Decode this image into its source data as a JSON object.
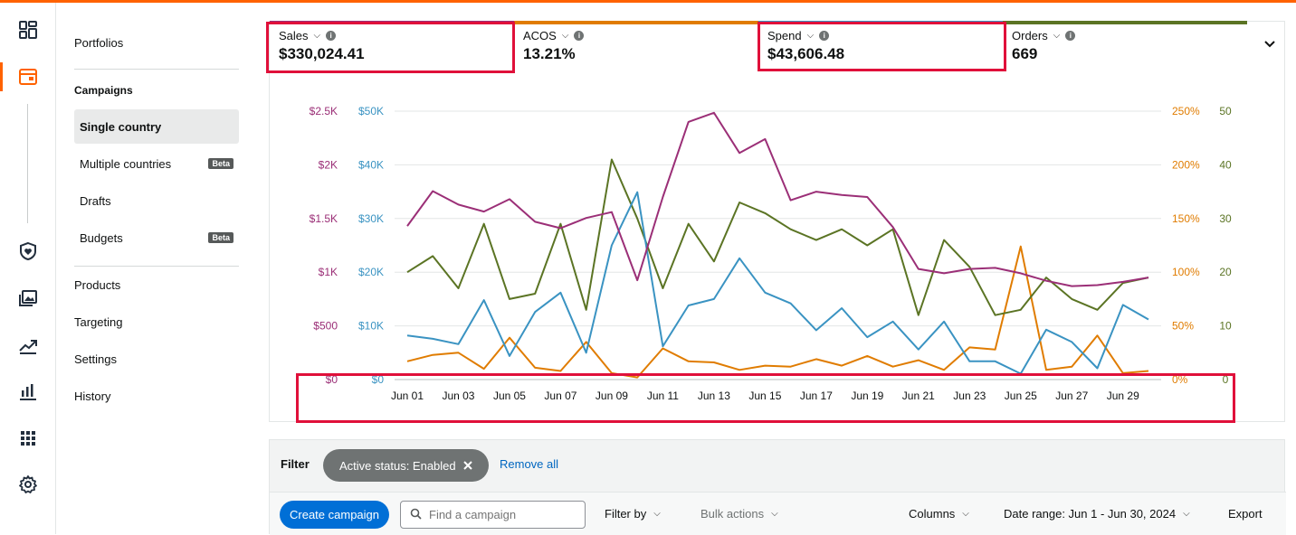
{
  "rail": {
    "icons": [
      "dashboard-icon",
      "campaign-manager-icon",
      "shield-heart-icon",
      "creative-media-icon",
      "trend-icon",
      "bar-report-icon",
      "apps-grid-icon",
      "settings-gear-icon"
    ]
  },
  "subnav": {
    "portfolios": "Portfolios",
    "campaigns_heading": "Campaigns",
    "items": [
      {
        "label": "Single country"
      },
      {
        "label": "Multiple countries",
        "badge": "Beta"
      },
      {
        "label": "Drafts"
      },
      {
        "label": "Budgets",
        "badge": "Beta"
      }
    ],
    "bottom": [
      "Products",
      "Targeting",
      "Settings",
      "History"
    ]
  },
  "metrics": [
    {
      "label": "Sales",
      "value": "$330,024.41",
      "color": "#9b2f77"
    },
    {
      "label": "ACOS",
      "value": "13.21%",
      "color": "#e07c00"
    },
    {
      "label": "Spend",
      "value": "$43,606.48",
      "color": "#3a93c2"
    },
    {
      "label": "Orders",
      "value": "669",
      "color": "#5b7424"
    }
  ],
  "chart_data": {
    "type": "line",
    "x": [
      "Jun 01",
      "Jun 02",
      "Jun 03",
      "Jun 04",
      "Jun 05",
      "Jun 06",
      "Jun 07",
      "Jun 08",
      "Jun 09",
      "Jun 10",
      "Jun 11",
      "Jun 12",
      "Jun 13",
      "Jun 14",
      "Jun 15",
      "Jun 16",
      "Jun 17",
      "Jun 18",
      "Jun 19",
      "Jun 20",
      "Jun 21",
      "Jun 22",
      "Jun 23",
      "Jun 24",
      "Jun 25",
      "Jun 26",
      "Jun 27",
      "Jun 28",
      "Jun 29",
      "Jun 30"
    ],
    "x_tick_labels": [
      "Jun 01",
      "Jun 03",
      "Jun 05",
      "Jun 07",
      "Jun 09",
      "Jun 11",
      "Jun 13",
      "Jun 15",
      "Jun 17",
      "Jun 19",
      "Jun 21",
      "Jun 23",
      "Jun 25",
      "Jun 27",
      "Jun 29"
    ],
    "axes": {
      "sales": {
        "ticks": [
          "$0",
          "$500",
          "$1K",
          "$1.5K",
          "$2K",
          "$2.5K"
        ],
        "max": 2500,
        "color": "#9b2f77"
      },
      "spend": {
        "ticks": [
          "$0",
          "$10K",
          "$20K",
          "$30K",
          "$40K",
          "$50K"
        ],
        "max": 50000,
        "color": "#3a93c2"
      },
      "acos": {
        "ticks": [
          "0%",
          "50%",
          "100%",
          "150%",
          "200%",
          "250%"
        ],
        "max": 250,
        "color": "#e07c00"
      },
      "orders": {
        "ticks": [
          "0",
          "10",
          "20",
          "30",
          "40",
          "50"
        ],
        "max": 50,
        "color": "#5b7424"
      }
    },
    "series": [
      {
        "name": "Sales",
        "axis": "sales",
        "color": "#9b2f77",
        "values": [
          1430,
          1755,
          1630,
          1565,
          1680,
          1470,
          1410,
          1505,
          1560,
          925,
          1700,
          2400,
          2485,
          2110,
          2240,
          1670,
          1750,
          1720,
          1700,
          1420,
          1030,
          990,
          1030,
          1040,
          990,
          920,
          870,
          880,
          910,
          950
        ]
      },
      {
        "name": "ACOS",
        "axis": "acos",
        "color": "#e07c00",
        "values": [
          17,
          23,
          25,
          10,
          39,
          11,
          8,
          35,
          6,
          2,
          29,
          17,
          16,
          9,
          13,
          12,
          19,
          13,
          22,
          12,
          18,
          9,
          30,
          28,
          124,
          9,
          12,
          41,
          6,
          8
        ]
      },
      {
        "name": "Spend",
        "axis": "spend",
        "color": "#3a93c2",
        "values": [
          8200,
          7600,
          6600,
          14800,
          4400,
          12600,
          16200,
          5000,
          25000,
          34900,
          6200,
          13800,
          15000,
          22600,
          16200,
          14200,
          9200,
          13300,
          7900,
          10800,
          5600,
          10800,
          3400,
          3400,
          1100,
          9300,
          7000,
          2100,
          13900,
          11200
        ]
      },
      {
        "name": "Orders",
        "axis": "orders",
        "color": "#5b7424",
        "values": [
          20,
          23,
          17,
          29,
          15,
          16,
          29,
          13,
          41,
          30,
          17,
          29,
          22,
          33,
          31,
          28,
          26,
          28,
          25,
          28,
          12,
          26,
          21,
          12,
          13,
          19,
          15,
          13,
          18,
          19
        ]
      }
    ]
  },
  "filter": {
    "label": "Filter",
    "chip": "Active status: Enabled",
    "remove_all": "Remove all"
  },
  "toolbar": {
    "create": "Create campaign",
    "search_placeholder": "Find a campaign",
    "filter_by": "Filter by",
    "bulk_actions": "Bulk actions",
    "columns": "Columns",
    "date_range": "Date range: Jun 1 - Jun 30, 2024",
    "export": "Export"
  }
}
